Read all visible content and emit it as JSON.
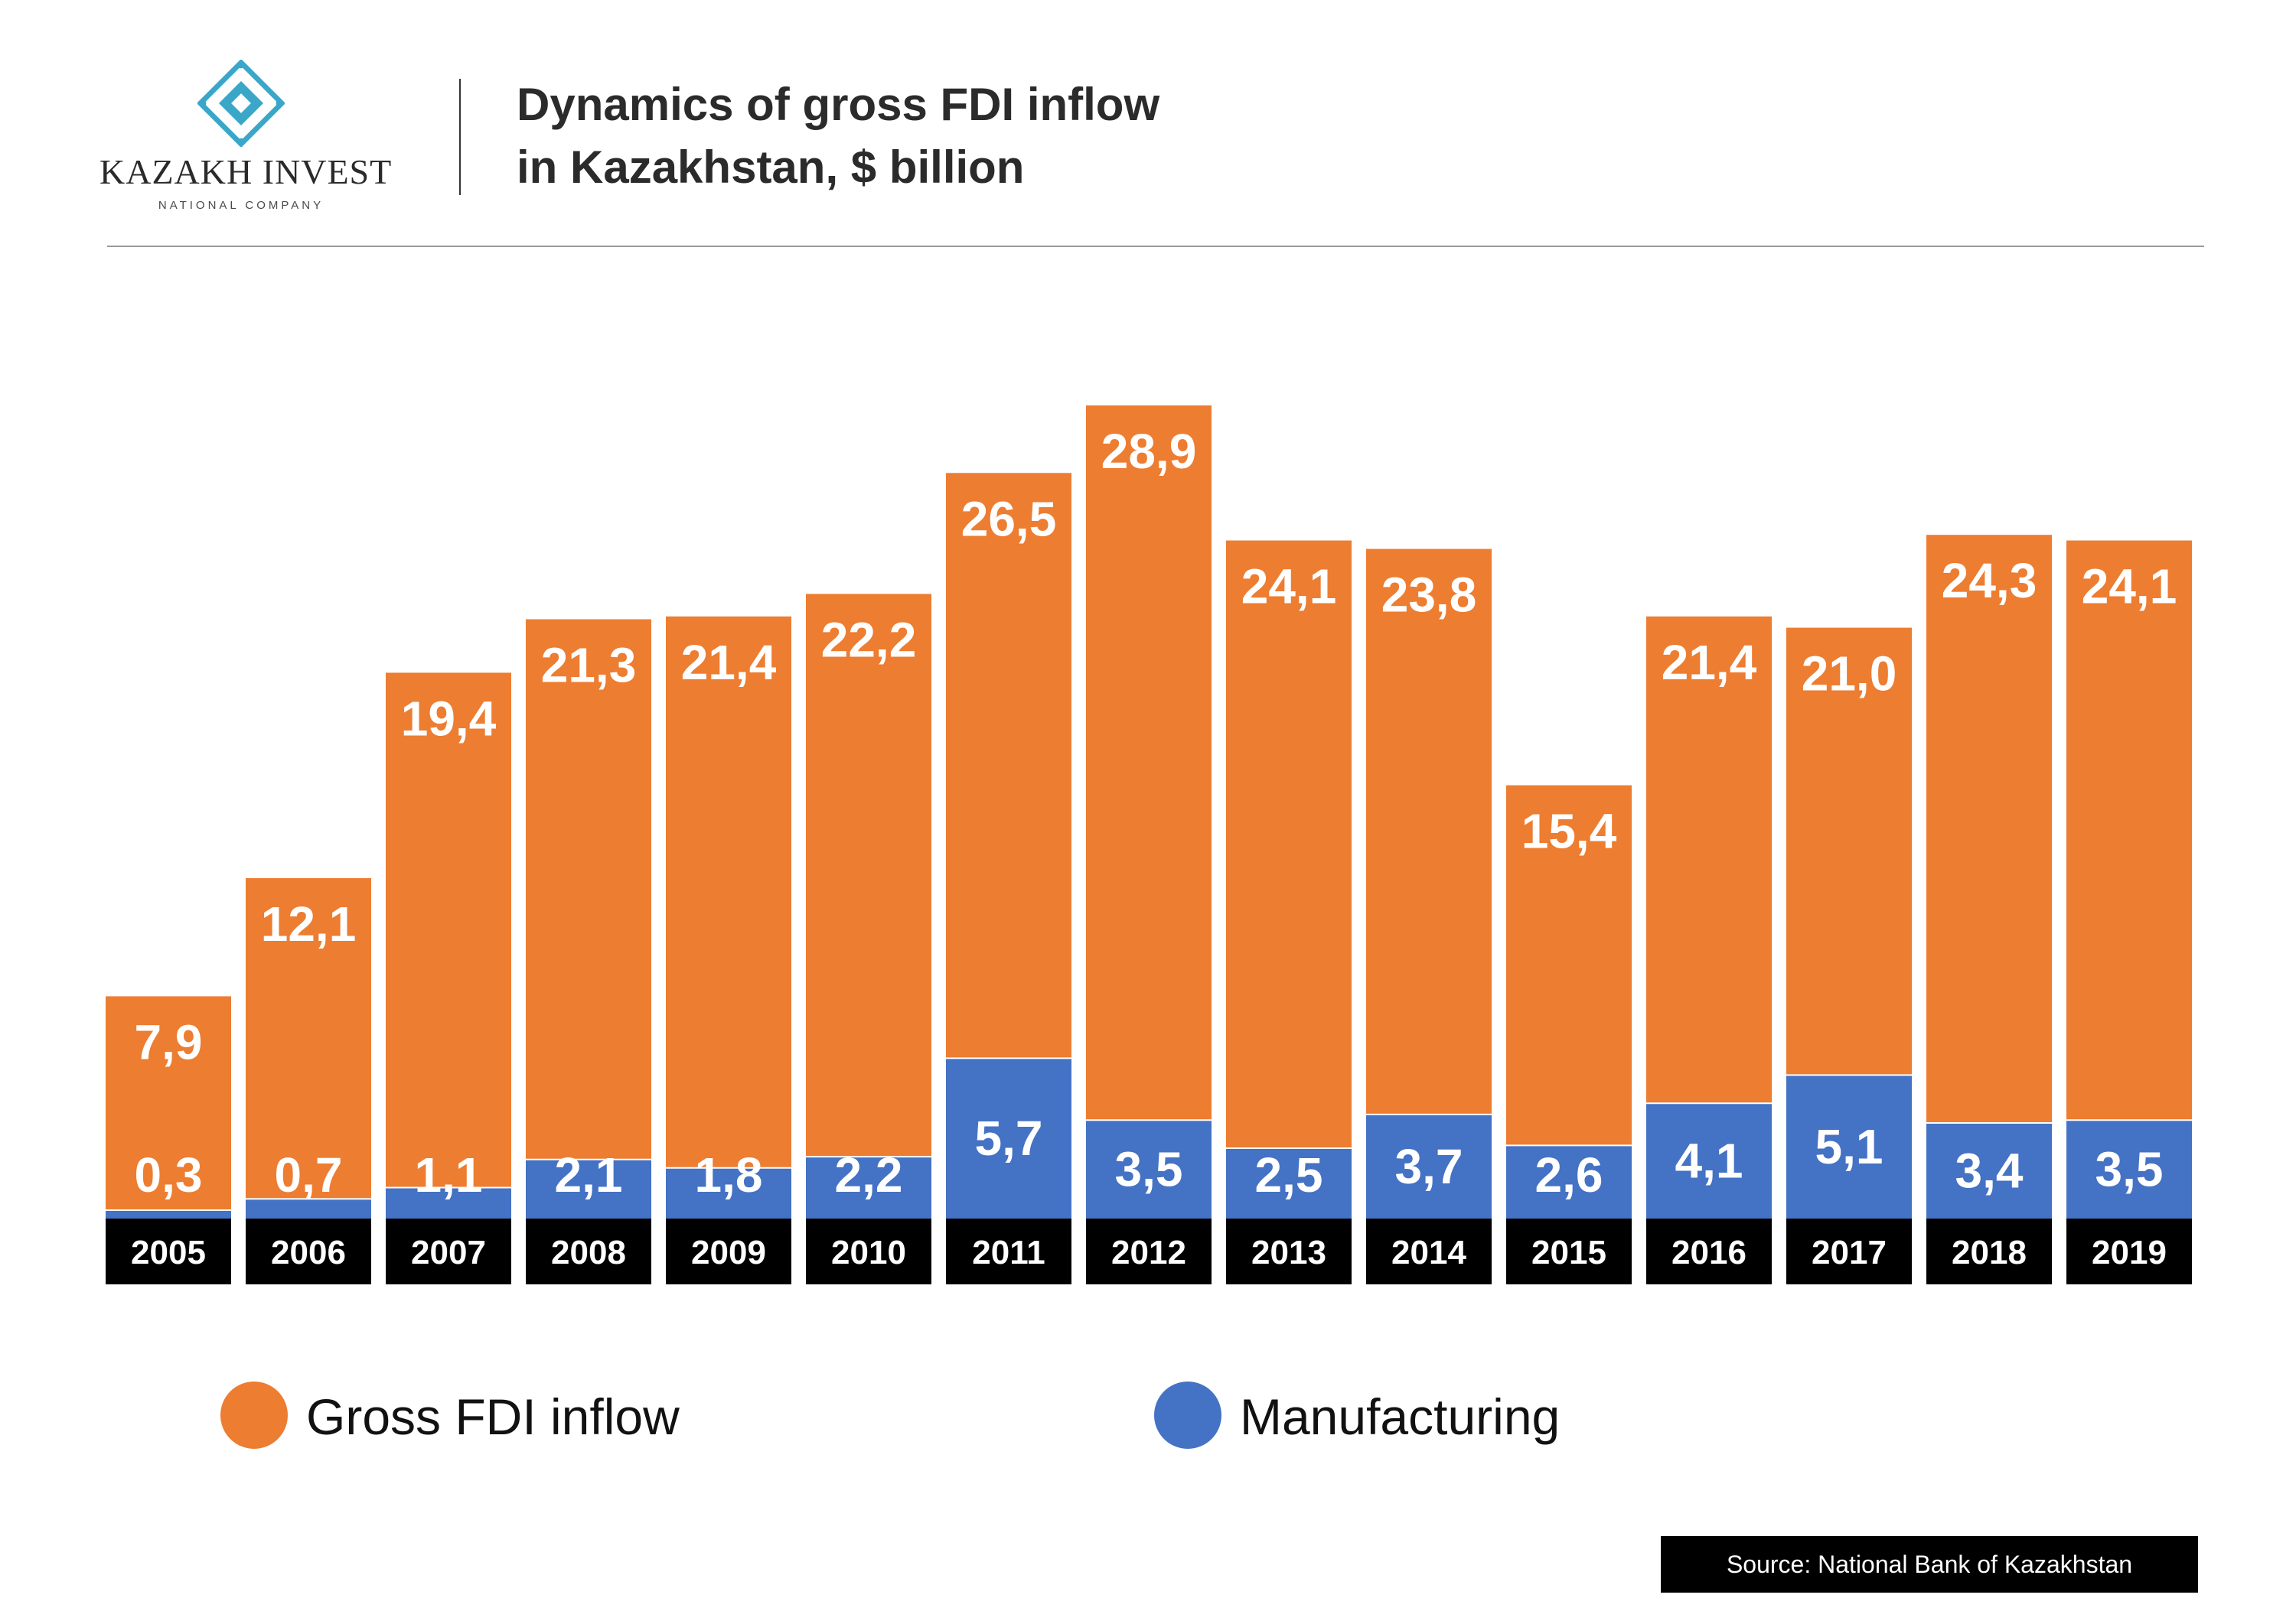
{
  "logo": {
    "name": "KAZAKH INVEST",
    "subtitle": "NATIONAL COMPANY"
  },
  "title": {
    "line1": "Dynamics of gross FDI inflow",
    "line2": "in Kazakhstan, $ billion"
  },
  "colors": {
    "gross": "#ED7D31",
    "manufacturing": "#4472C4",
    "year_box": "#000000"
  },
  "chart_data": {
    "type": "bar",
    "title": "Dynamics of gross FDI inflow in Kazakhstan, $ billion",
    "xlabel": "",
    "ylabel": "",
    "ylim": [
      0,
      28.9
    ],
    "categories": [
      "2005",
      "2006",
      "2007",
      "2008",
      "2009",
      "2010",
      "2011",
      "2012",
      "2013",
      "2014",
      "2015",
      "2016",
      "2017",
      "2018",
      "2019"
    ],
    "series": [
      {
        "name": "Gross FDI inflow",
        "values": [
          7.9,
          12.1,
          19.4,
          21.3,
          21.4,
          22.2,
          26.5,
          28.9,
          24.1,
          23.8,
          15.4,
          21.4,
          21.0,
          24.3,
          24.1
        ],
        "labels": [
          "7,9",
          "12,1",
          "19,4",
          "21,3",
          "21,4",
          "22,2",
          "26,5",
          "28,9",
          "24,1",
          "23,8",
          "15,4",
          "21,4",
          "21,0",
          "24,3",
          "24,1"
        ]
      },
      {
        "name": "Manufacturing",
        "values": [
          0.3,
          0.7,
          1.1,
          2.1,
          1.8,
          2.2,
          5.7,
          3.5,
          2.5,
          3.7,
          2.6,
          4.1,
          5.1,
          3.4,
          3.5
        ],
        "labels": [
          "0,3",
          "0,7",
          "1,1",
          "2,1",
          "1,8",
          "2,2",
          "5,7",
          "3,5",
          "2,5",
          "3,7",
          "2,6",
          "4,1",
          "5,1",
          "3,4",
          "3,5"
        ]
      }
    ],
    "legend": [
      "Gross FDI inflow",
      "Manufacturing"
    ],
    "legend_position": "bottom"
  },
  "source": "Source: National Bank of Kazakhstan"
}
